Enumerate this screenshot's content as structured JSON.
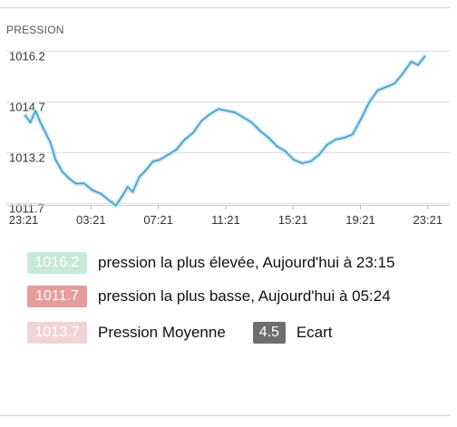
{
  "header": {
    "title": "PRESSION"
  },
  "chart_data": {
    "type": "line",
    "title": "",
    "xlabel": "",
    "ylabel": "",
    "x_ticks": [
      "23:21",
      "03:21",
      "07:21",
      "11:21",
      "15:21",
      "19:21",
      "23:21"
    ],
    "y_ticks": [
      "1016.2",
      "1014.7",
      "1013.2",
      "1011.7"
    ],
    "y_tick_values": [
      1016.2,
      1014.7,
      1013.2,
      1011.7
    ],
    "ylim": [
      1011.7,
      1016.2
    ],
    "xlim_hours": [
      0,
      24
    ],
    "grid": true,
    "series": [
      {
        "color": "#3a9fd0",
        "x_hours": [
          0,
          0.3,
          0.6,
          0.9,
          1.2,
          1.5,
          1.8,
          2.2,
          2.6,
          3.0,
          3.5,
          4.0,
          4.5,
          5.0,
          5.4,
          5.8,
          6.1,
          6.4,
          6.8,
          7.2,
          7.6,
          8.0,
          8.5,
          9.0,
          9.5,
          10.0,
          10.5,
          11.0,
          11.5,
          12.0,
          12.5,
          13.0,
          13.5,
          14.0,
          14.5,
          15.0,
          15.5,
          16.0,
          16.5,
          17.0,
          17.5,
          18.0,
          18.5,
          19.0,
          19.5,
          20.0,
          20.5,
          21.0,
          21.5,
          22.0,
          22.5,
          23.0,
          23.4,
          23.8
        ],
        "values": [
          1014.6,
          1014.4,
          1014.75,
          1014.4,
          1014.1,
          1013.8,
          1013.3,
          1012.95,
          1012.75,
          1012.6,
          1012.6,
          1012.4,
          1012.3,
          1012.1,
          1011.95,
          1012.25,
          1012.5,
          1012.35,
          1012.8,
          1013.0,
          1013.25,
          1013.3,
          1013.45,
          1013.6,
          1013.9,
          1014.1,
          1014.45,
          1014.65,
          1014.8,
          1014.75,
          1014.7,
          1014.55,
          1014.4,
          1014.15,
          1013.95,
          1013.7,
          1013.55,
          1013.3,
          1013.2,
          1013.25,
          1013.45,
          1013.75,
          1013.9,
          1013.95,
          1014.05,
          1014.5,
          1015.0,
          1015.35,
          1015.45,
          1015.55,
          1015.85,
          1016.2,
          1016.1,
          1016.35
        ]
      }
    ]
  },
  "stats": {
    "high": {
      "value": "1016.2",
      "text": "pression la plus élevée, Aujourd'hui à 23:15",
      "color": "#c7ead8"
    },
    "low": {
      "value": "1011.7",
      "text": "pression la plus basse, Aujourd'hui à 05:24",
      "color": "#e79c9c"
    },
    "average": {
      "value": "1013.7",
      "text": "Pression Moyenne",
      "color": "#f0d4d8"
    },
    "spread": {
      "value": "4.5",
      "text": "Ecart",
      "color": "#6e6e6e"
    }
  }
}
